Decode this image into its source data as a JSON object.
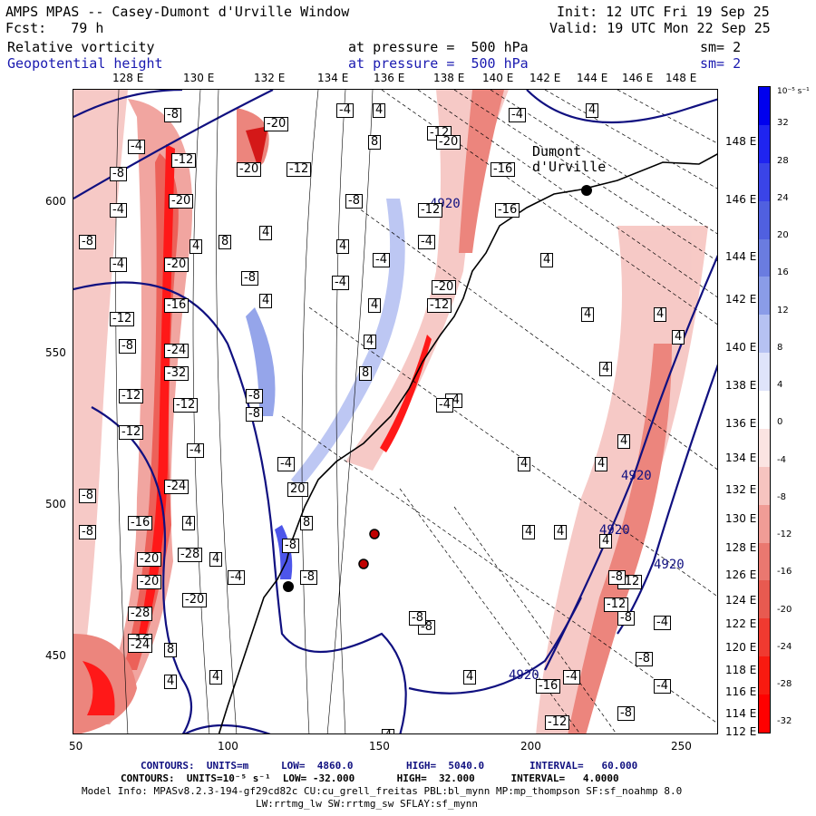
{
  "header": {
    "title": "AMPS MPAS -- Casey-Dumont d'Urville Window",
    "init": "Init: 12 UTC Fri 19 Sep 25",
    "fcst": "Fcst:   79 h",
    "valid": "Valid: 19 UTC Mon 22 Sep 25",
    "field1": {
      "name": "Relative vorticity",
      "level": "at pressure =  500 hPa",
      "sm": "sm= 2"
    },
    "field2": {
      "name": "Geopotential height",
      "level": "at pressure =  500 hPa",
      "sm": "sm= 2"
    }
  },
  "axes": {
    "lon_top": [
      "128 E",
      "130 E",
      "132 E",
      "134 E",
      "136 E",
      "138 E",
      "140 E",
      "142 E",
      "144 E",
      "146 E",
      "148 E"
    ],
    "lon_right": [
      "148 E",
      "146 E",
      "144 E",
      "142 E",
      "140 E",
      "138 E",
      "136 E",
      "134 E",
      "132 E",
      "130 E",
      "128 E",
      "126 E",
      "124 E",
      "122 E",
      "120 E",
      "118 E",
      "116 E",
      "114 E",
      "112 E"
    ],
    "x_ticks": [
      "50",
      "100",
      "150",
      "200",
      "250"
    ],
    "y_ticks": [
      "600",
      "550",
      "500",
      "450"
    ]
  },
  "colorbar": {
    "unit": "10⁻⁵ s⁻¹",
    "labels": [
      "32",
      "28",
      "24",
      "20",
      "16",
      "12",
      "8",
      "4",
      "0",
      "-4",
      "-8",
      "-12",
      "-16",
      "-20",
      "-24",
      "-28",
      "-32"
    ],
    "colors": [
      "#0000ee",
      "#1f24f0",
      "#3a44e8",
      "#5060e0",
      "#6a7ce0",
      "#8a9ce8",
      "#b6c2f2",
      "#dfe4fa",
      "#ffffff",
      "#fbe4e2",
      "#f6c4c0",
      "#f09c96",
      "#ea7870",
      "#e85a50",
      "#f03a30",
      "#f81a10",
      "#ff0000"
    ]
  },
  "map": {
    "place": "Dumont\nd'Urville",
    "height_labels": [
      "4920",
      "4920",
      "4920",
      "4920",
      "4920"
    ],
    "vort_labels": [
      "-8",
      "-20",
      "-4",
      "4",
      "-4",
      "4",
      "-4",
      "-12",
      "8",
      "-8",
      "-20",
      "-12",
      "-12",
      "-16",
      "-20",
      "-20",
      "-4",
      "-8",
      "8",
      "4",
      "4",
      "-4",
      "-16",
      "-8",
      "-8",
      "4",
      "-20",
      "4",
      "-12",
      "-4",
      "-20",
      "-16",
      "-4",
      "4",
      "-4",
      "4",
      "-12",
      "-12",
      "4",
      "-8",
      "8",
      "4",
      "4",
      "4",
      "-12",
      "-24",
      "-8",
      "-4",
      "-32",
      "4",
      "-12",
      "-12",
      "-8",
      "-4",
      "4",
      "-12",
      "-28",
      "-4",
      "-8",
      "-20",
      "-4",
      "4",
      "4",
      "4",
      "-24",
      "-20",
      "-8",
      "-4",
      "-16",
      "20",
      "-8",
      "-28",
      "4",
      "-4",
      "-20",
      "8",
      "-8",
      "4",
      "-28",
      "4",
      "-8",
      "-16",
      "-24",
      "4",
      "4",
      "-12",
      "-8",
      "-4",
      "-8",
      "-4",
      "-4",
      "4",
      "-8",
      "4",
      "4",
      "-8",
      "8",
      "-12",
      "-16",
      "-12",
      "-8",
      "-8"
    ]
  },
  "footer": {
    "line1": {
      "contours": "CONTOURS:  UNITS=m",
      "low": "LOW=  4860.0",
      "high": "HIGH=  5040.0",
      "interval": "INTERVAL=   60.000"
    },
    "line2": "CONTOURS:  UNITS=10⁻⁵ s⁻¹  LOW= -32.000       HIGH=  32.000      INTERVAL=   4.0000",
    "line3": "Model Info: MPASv8.2.3-194-gf29cd82c CU:cu_grell_freitas PBL:bl_mynn MP:mp_thompson SF:sf_noahmp 8.0",
    "line4": "LW:rrtmg_lw SW:rrtmg_sw SFLAY:sf_mynn"
  }
}
